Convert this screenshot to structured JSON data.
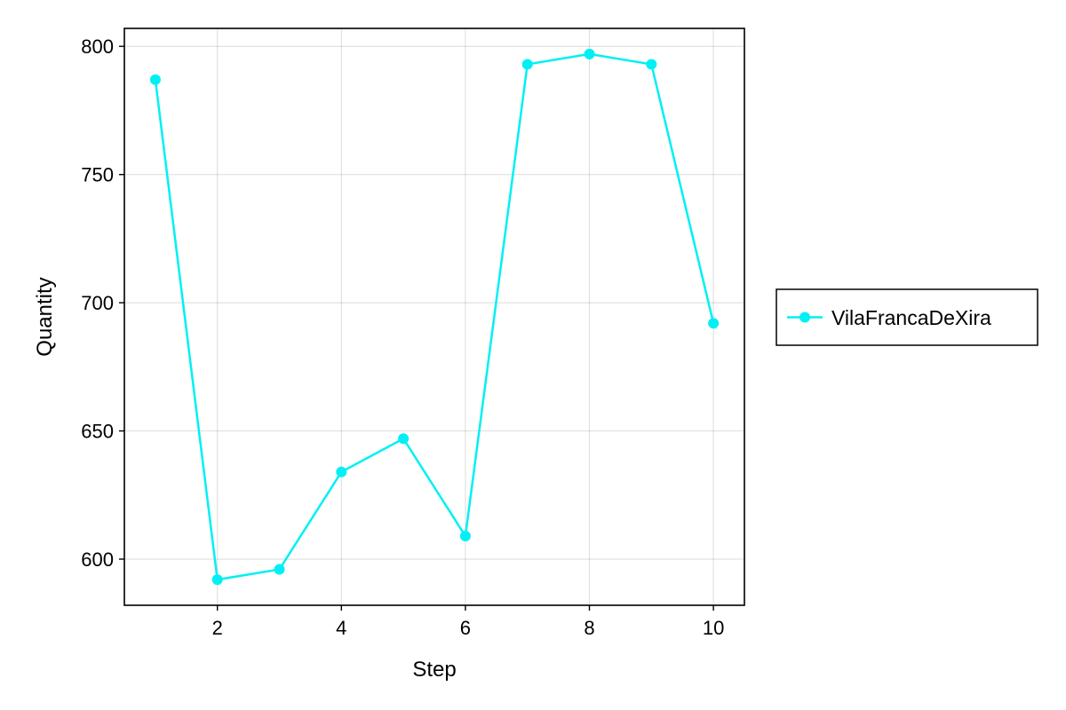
{
  "chart_data": {
    "type": "line",
    "title": "",
    "xlabel": "Step",
    "ylabel": "Quantity",
    "x": [
      1,
      2,
      3,
      4,
      5,
      6,
      7,
      8,
      9,
      10
    ],
    "series": [
      {
        "name": "VilaFrancaDeXira",
        "color": "#00f0f5",
        "marker": "circle",
        "values": [
          787,
          592,
          596,
          634,
          647,
          609,
          793,
          797,
          793,
          692
        ]
      }
    ],
    "xlim": [
      0.5,
      10.5
    ],
    "ylim": [
      582,
      807
    ],
    "xticks": [
      2,
      4,
      6,
      8,
      10
    ],
    "yticks": [
      600,
      650,
      700,
      750,
      800
    ],
    "grid": true,
    "legend_position": "right"
  }
}
